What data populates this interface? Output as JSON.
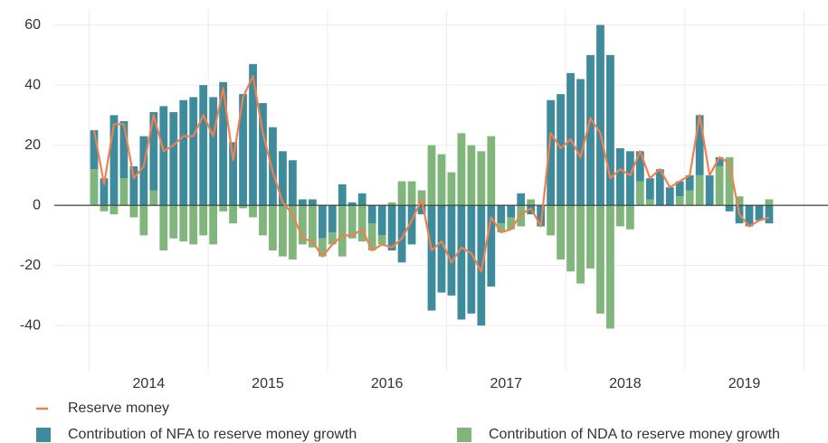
{
  "chart_data": {
    "type": "bar",
    "categories": [
      null,
      null,
      null,
      null,
      null,
      "2014",
      null,
      null,
      null,
      null,
      null,
      null,
      null,
      null,
      null,
      null,
      null,
      "2015",
      null,
      null,
      null,
      null,
      null,
      null,
      null,
      null,
      null,
      null,
      null,
      "2016",
      null,
      null,
      null,
      null,
      null,
      null,
      null,
      null,
      null,
      null,
      null,
      "2017",
      null,
      null,
      null,
      null,
      null,
      null,
      null,
      null,
      null,
      null,
      null,
      "2018",
      null,
      null,
      null,
      null,
      null,
      null,
      null,
      null,
      null,
      null,
      null,
      "2019",
      null,
      null,
      null
    ],
    "series": [
      {
        "name": "Reserve money",
        "type": "line",
        "color": "#f0804f",
        "values": [
          25,
          7,
          27,
          27,
          9,
          13,
          30,
          18,
          20,
          23,
          23,
          30,
          23,
          39,
          15,
          36,
          43,
          24,
          11,
          1,
          -3,
          -11,
          -12,
          -17,
          -13,
          -10,
          -10,
          -8,
          -15,
          -13,
          -14,
          -11,
          -5,
          2,
          -15,
          -12,
          -19,
          -14,
          -16,
          -22,
          -4,
          -9,
          -8,
          -3,
          -1,
          -7,
          24,
          19,
          22,
          16,
          29,
          24,
          9,
          12,
          10,
          18,
          9,
          12,
          6,
          8,
          10,
          30,
          10,
          16,
          14,
          -3,
          -7,
          -5,
          -4
        ]
      },
      {
        "name": "Contribution of NFA to reserve money growth",
        "color": "#3e8b9c",
        "values": [
          13,
          9,
          30,
          19,
          13,
          23,
          26,
          33,
          31,
          35,
          36,
          40,
          36,
          41,
          21,
          37,
          47,
          34,
          26,
          18,
          15,
          2,
          2,
          -11,
          -9,
          7,
          1,
          4,
          -6,
          -10,
          -15,
          -19,
          -13,
          -3,
          -35,
          -29,
          -30,
          -38,
          -36,
          -40,
          -27,
          -6,
          -4,
          4,
          -3,
          -7,
          35,
          37,
          44,
          42,
          50,
          60,
          50,
          19,
          18,
          10,
          7,
          12,
          6,
          5,
          5,
          20,
          10,
          3,
          -2,
          -6,
          -7,
          -5,
          -6
        ]
      },
      {
        "name": "Contribution of NDA to reserve money growth",
        "color": "#80b57c",
        "values": [
          12,
          -2,
          -3,
          9,
          -4,
          -10,
          5,
          -15,
          -11,
          -12,
          -13,
          -10,
          -13,
          -2,
          -6,
          -1,
          -4,
          -10,
          -15,
          -17,
          -18,
          -13,
          -14,
          -6,
          -4,
          -17,
          -11,
          -12,
          -9,
          -3,
          1,
          8,
          8,
          5,
          20,
          17,
          11,
          24,
          20,
          18,
          23,
          -3,
          -4,
          -7,
          2,
          0,
          -10,
          -18,
          -22,
          -26,
          -21,
          -36,
          -41,
          -7,
          -8,
          8,
          2,
          0,
          0,
          3,
          5,
          10,
          0,
          13,
          16,
          3,
          0,
          0,
          2
        ]
      }
    ],
    "ylim": [
      -55,
      65
    ],
    "yticks": [
      -40,
      -20,
      0,
      20,
      40,
      60
    ],
    "grid": true
  }
}
